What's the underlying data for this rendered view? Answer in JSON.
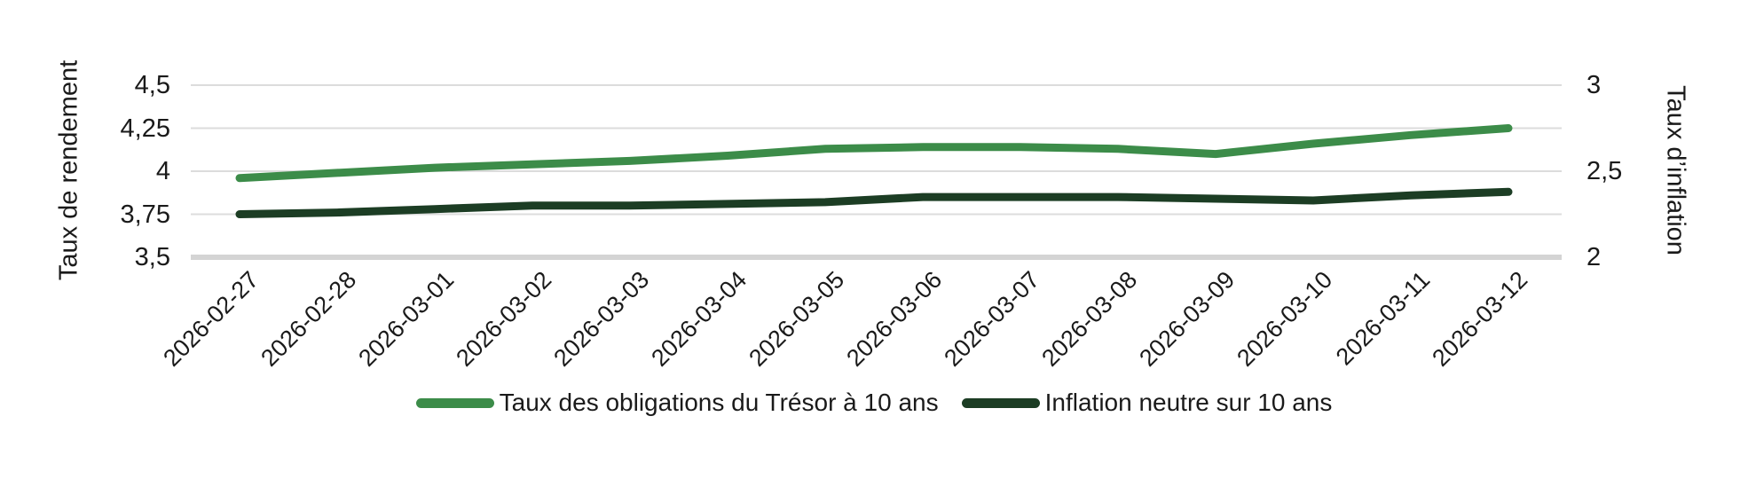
{
  "chart_data": {
    "type": "line",
    "title": "",
    "x": [
      "2026-02-27",
      "2026-02-28",
      "2026-03-01",
      "2026-03-02",
      "2026-03-03",
      "2026-03-04",
      "2026-03-05",
      "2026-03-06",
      "2026-03-07",
      "2026-03-08",
      "2026-03-09",
      "2026-03-10",
      "2026-03-11",
      "2026-03-12"
    ],
    "series": [
      {
        "name": "Taux des obligations du Trésor à 10 ans",
        "axis": "left",
        "color": "#3C8C49",
        "values": [
          3.96,
          3.99,
          4.02,
          4.04,
          4.06,
          4.09,
          4.13,
          4.14,
          4.14,
          4.13,
          4.1,
          4.16,
          4.21,
          4.25
        ]
      },
      {
        "name": "Inflation neutre sur 10 ans",
        "axis": "right",
        "color": "#1C3D24",
        "values": [
          2.25,
          2.26,
          2.28,
          2.3,
          2.3,
          2.31,
          2.32,
          2.35,
          2.35,
          2.35,
          2.34,
          2.33,
          2.36,
          2.38
        ]
      }
    ],
    "left_axis": {
      "title": "Taux de rendement",
      "tick_labels": [
        "4,5",
        "4,25",
        "4",
        "3,75",
        "3,5"
      ],
      "tick_values": [
        4.5,
        4.25,
        4.0,
        3.75,
        3.5
      ],
      "range": [
        3.5,
        4.5
      ]
    },
    "right_axis": {
      "title": "Taux d’inflation",
      "tick_labels": [
        "3",
        "2,5",
        "2"
      ],
      "tick_values": [
        3.0,
        2.5,
        2.0
      ],
      "range": [
        2.0,
        3.0
      ]
    },
    "grid": "horizontal",
    "legend_position": "bottom",
    "colors": {
      "gridline": "#DCDCDC",
      "baseline": "#D4D4D4",
      "text": "#1A1A1A",
      "background": "#FFFFFF"
    }
  }
}
